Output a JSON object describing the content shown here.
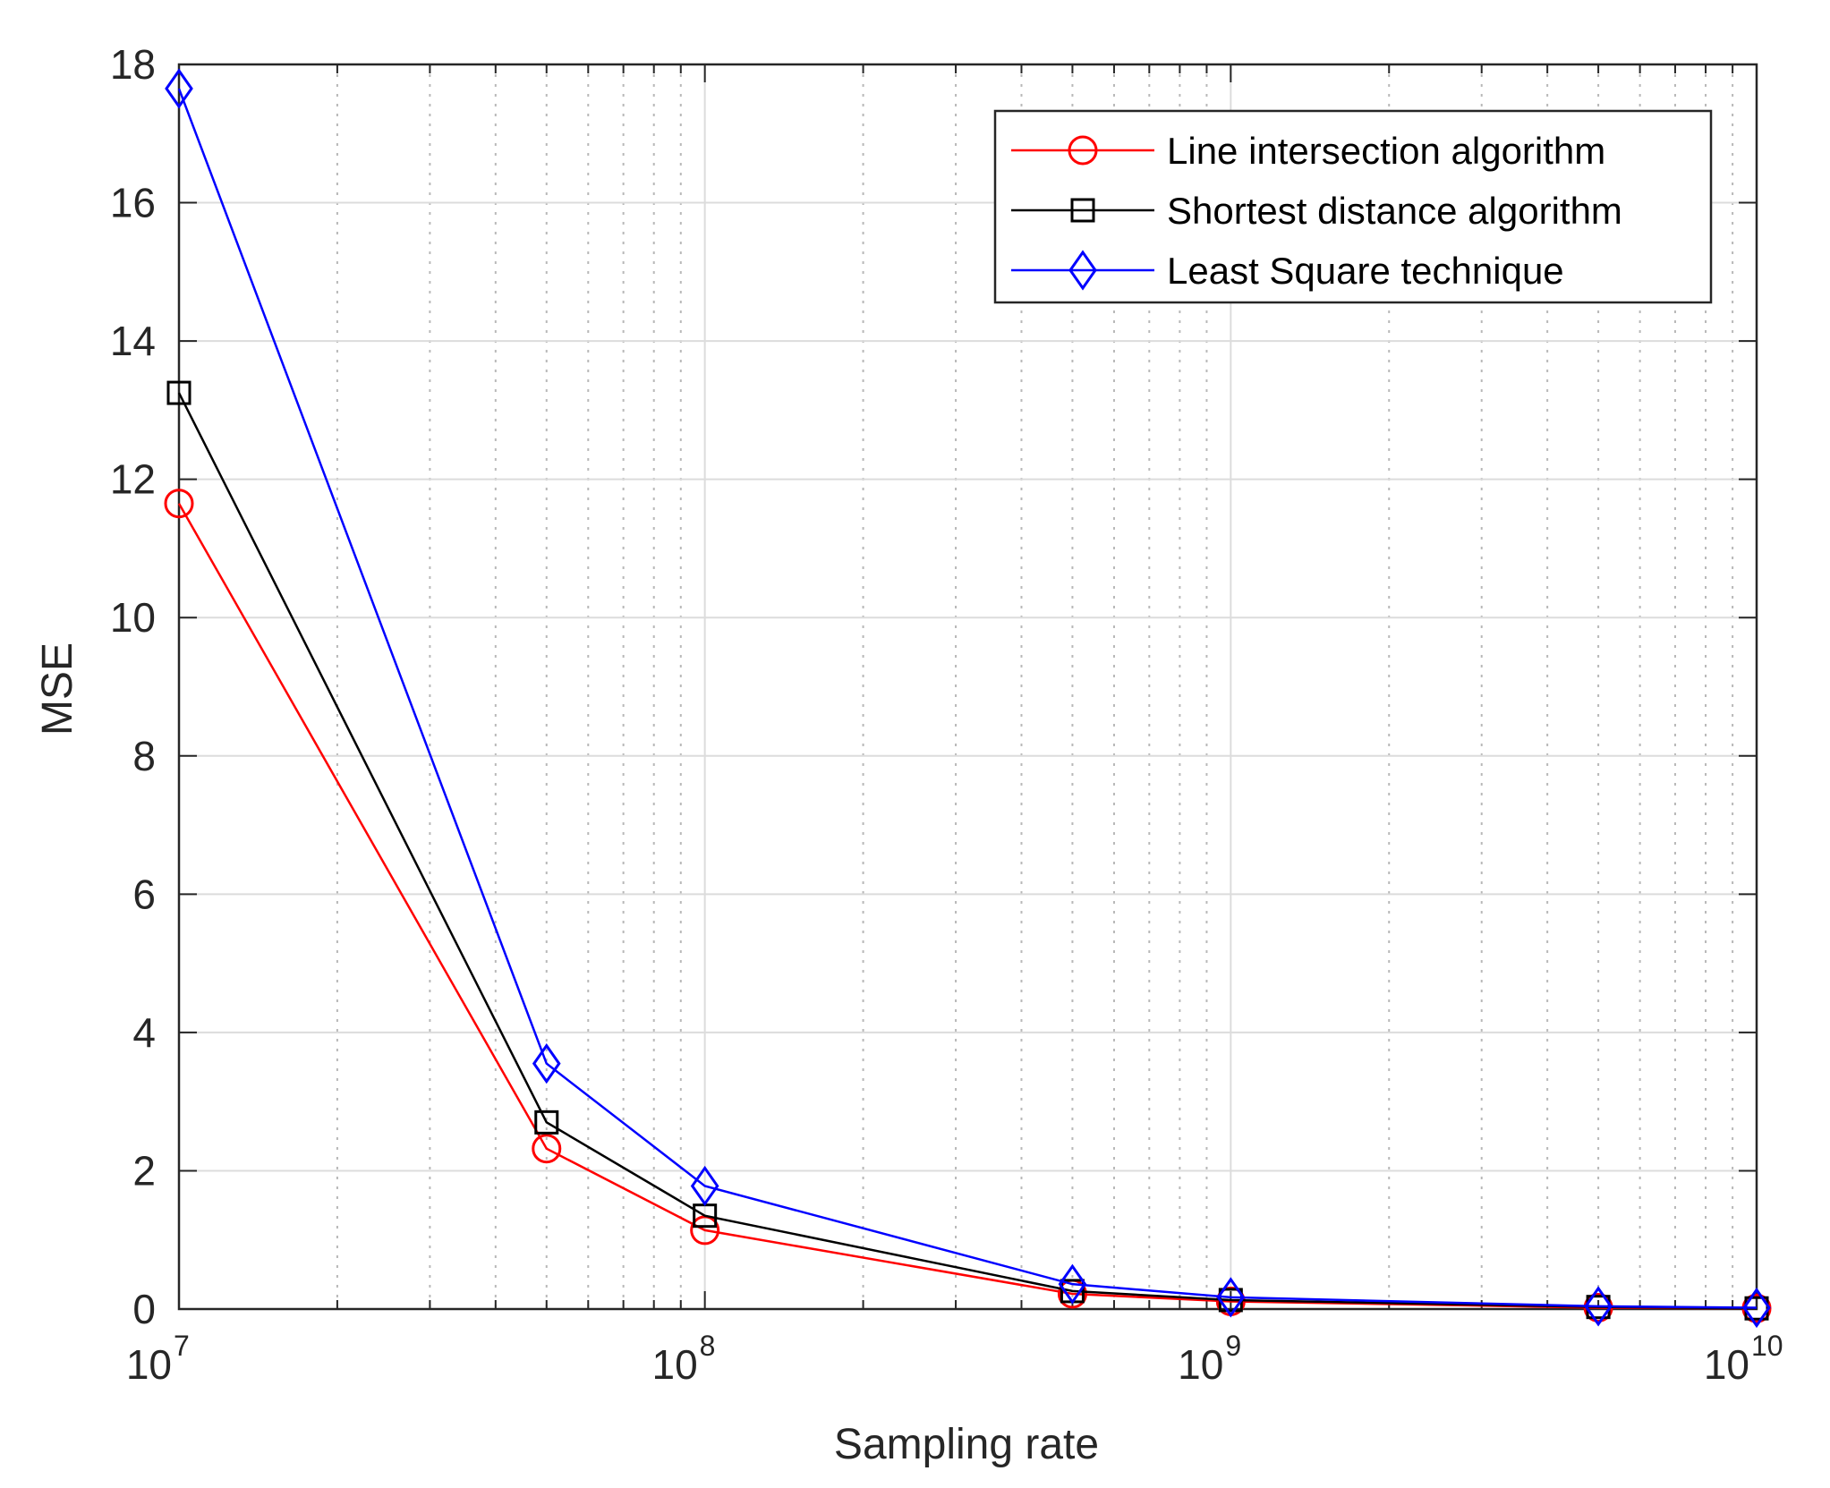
{
  "chart_data": {
    "type": "line",
    "title": "",
    "xlabel": "Sampling rate",
    "ylabel": "MSE",
    "xscale": "log",
    "xlim": [
      10000000,
      10000000000
    ],
    "ylim": [
      0,
      18
    ],
    "x_ticks": [
      {
        "base": "10",
        "exp": "7",
        "value": 10000000
      },
      {
        "base": "10",
        "exp": "8",
        "value": 100000000
      },
      {
        "base": "10",
        "exp": "9",
        "value": 1000000000
      },
      {
        "base": "10",
        "exp": "10",
        "value": 10000000000
      }
    ],
    "y_ticks": [
      "0",
      "2",
      "4",
      "6",
      "8",
      "10",
      "12",
      "14",
      "16",
      "18"
    ],
    "grid": true,
    "legend_position": "top-right",
    "x": [
      10000000,
      50000000,
      100000000,
      500000000,
      1000000000,
      5000000000,
      10000000000
    ],
    "series": [
      {
        "name": "Line intersection algorithm",
        "color": "#ff0000",
        "marker": "circle",
        "values": [
          11.65,
          2.32,
          1.14,
          0.22,
          0.11,
          0.02,
          0.01
        ]
      },
      {
        "name": "Shortest distance algorithm",
        "color": "#000000",
        "marker": "square",
        "values": [
          13.25,
          2.7,
          1.35,
          0.26,
          0.13,
          0.03,
          0.01
        ]
      },
      {
        "name": "Least Square technique",
        "color": "#0000ff",
        "marker": "diamond",
        "values": [
          17.65,
          3.55,
          1.78,
          0.36,
          0.17,
          0.04,
          0.02
        ]
      }
    ]
  }
}
